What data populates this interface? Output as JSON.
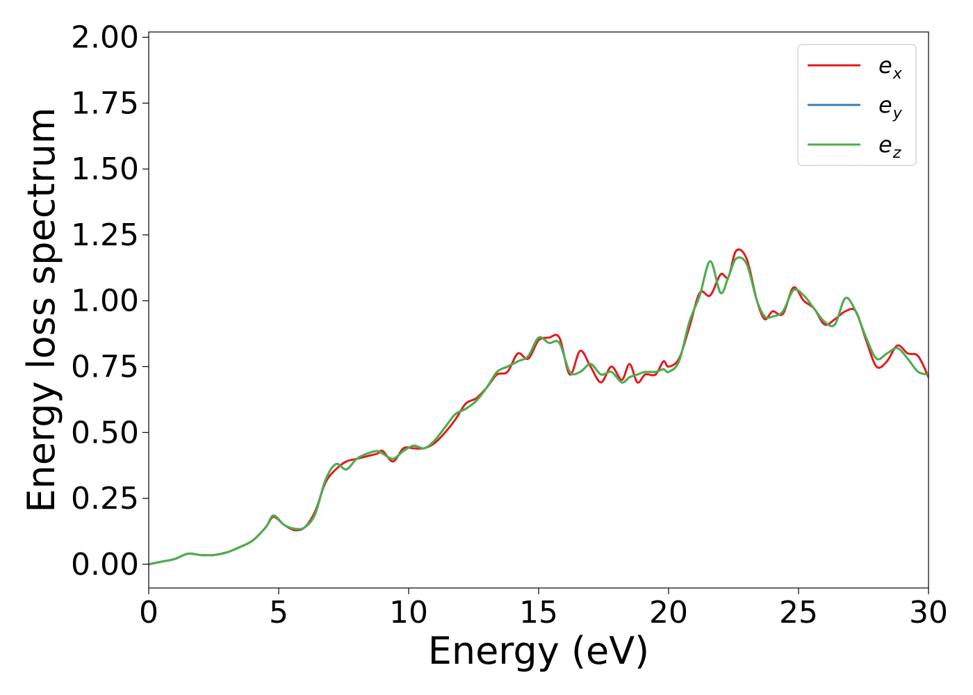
{
  "chart_data": {
    "type": "line",
    "title": "",
    "xlabel": "Energy (eV)",
    "ylabel": "Energy loss spectrum",
    "xlim": [
      0,
      30
    ],
    "ylim": [
      -0.09,
      2.02
    ],
    "xticks": [
      0,
      5,
      10,
      15,
      20,
      25,
      30
    ],
    "xtick_labels": [
      "0",
      "5",
      "10",
      "15",
      "20",
      "25",
      "30"
    ],
    "yticks": [
      0.0,
      0.25,
      0.5,
      0.75,
      1.0,
      1.25,
      1.5,
      1.75,
      2.0
    ],
    "ytick_labels": [
      "0.00",
      "0.25",
      "0.50",
      "0.75",
      "1.00",
      "1.25",
      "1.50",
      "1.75",
      "2.00"
    ],
    "grid": false,
    "legend": "top-right",
    "series": [
      {
        "name": "e",
        "subscript": "x",
        "color": "#e41a1c",
        "x": [
          0,
          0.5,
          1.0,
          1.5,
          2.0,
          2.5,
          3.0,
          3.5,
          4.0,
          4.5,
          4.8,
          5.2,
          5.6,
          6.0,
          6.4,
          6.8,
          7.2,
          7.6,
          8.0,
          8.4,
          8.8,
          9.0,
          9.4,
          9.8,
          10.2,
          10.6,
          11.0,
          11.4,
          11.8,
          12.2,
          12.6,
          13.0,
          13.4,
          13.8,
          14.2,
          14.6,
          15.0,
          15.4,
          15.8,
          16.2,
          16.6,
          17.0,
          17.4,
          17.8,
          18.2,
          18.5,
          18.8,
          19.1,
          19.5,
          19.8,
          20.0,
          20.4,
          20.8,
          21.2,
          21.6,
          22.0,
          22.3,
          22.6,
          23.0,
          23.4,
          23.7,
          24.0,
          24.4,
          24.8,
          25.2,
          25.6,
          26.0,
          26.4,
          26.8,
          27.2,
          27.6,
          28.0,
          28.4,
          28.8,
          29.2,
          29.6,
          30.0
        ],
        "values": [
          0.0,
          0.01,
          0.02,
          0.04,
          0.035,
          0.035,
          0.045,
          0.065,
          0.09,
          0.14,
          0.18,
          0.15,
          0.13,
          0.14,
          0.2,
          0.31,
          0.36,
          0.39,
          0.4,
          0.41,
          0.42,
          0.43,
          0.39,
          0.44,
          0.44,
          0.44,
          0.46,
          0.5,
          0.55,
          0.61,
          0.63,
          0.67,
          0.72,
          0.73,
          0.8,
          0.78,
          0.85,
          0.86,
          0.86,
          0.72,
          0.81,
          0.75,
          0.69,
          0.75,
          0.7,
          0.76,
          0.69,
          0.72,
          0.72,
          0.77,
          0.75,
          0.78,
          0.9,
          1.03,
          1.02,
          1.1,
          1.09,
          1.19,
          1.16,
          1.0,
          0.93,
          0.96,
          0.95,
          1.05,
          1.0,
          0.97,
          0.91,
          0.93,
          0.96,
          0.96,
          0.85,
          0.75,
          0.77,
          0.83,
          0.8,
          0.79,
          0.71
        ]
      },
      {
        "name": "e",
        "subscript": "y",
        "color": "#377eb8",
        "x": [
          0,
          0.5,
          1.0,
          1.5,
          2.0,
          2.5,
          3.0,
          3.5,
          4.0,
          4.5,
          4.8,
          5.2,
          5.6,
          6.0,
          6.4,
          6.8,
          7.2,
          7.6,
          8.0,
          8.4,
          8.8,
          9.0,
          9.4,
          9.8,
          10.2,
          10.6,
          11.0,
          11.4,
          11.8,
          12.2,
          12.6,
          13.0,
          13.4,
          13.8,
          14.2,
          14.6,
          15.0,
          15.4,
          15.8,
          16.2,
          16.6,
          17.0,
          17.4,
          17.8,
          18.2,
          18.5,
          18.8,
          19.1,
          19.5,
          19.8,
          20.0,
          20.4,
          20.8,
          21.2,
          21.6,
          22.0,
          22.3,
          22.6,
          23.0,
          23.4,
          23.7,
          24.0,
          24.4,
          24.8,
          25.2,
          25.6,
          26.0,
          26.4,
          26.8,
          27.2,
          27.6,
          28.0,
          28.4,
          28.8,
          29.2,
          29.6,
          30.0
        ],
        "values": [
          0.0,
          0.01,
          0.02,
          0.04,
          0.035,
          0.035,
          0.045,
          0.065,
          0.09,
          0.14,
          0.185,
          0.15,
          0.135,
          0.14,
          0.19,
          0.32,
          0.38,
          0.36,
          0.4,
          0.42,
          0.43,
          0.42,
          0.4,
          0.43,
          0.45,
          0.44,
          0.47,
          0.52,
          0.57,
          0.59,
          0.62,
          0.67,
          0.73,
          0.75,
          0.77,
          0.79,
          0.86,
          0.84,
          0.84,
          0.73,
          0.73,
          0.76,
          0.72,
          0.73,
          0.69,
          0.71,
          0.72,
          0.73,
          0.73,
          0.74,
          0.73,
          0.77,
          0.92,
          1.02,
          1.15,
          1.03,
          1.09,
          1.16,
          1.14,
          1.0,
          0.94,
          0.94,
          0.96,
          1.04,
          1.02,
          0.97,
          0.92,
          0.91,
          1.01,
          0.96,
          0.86,
          0.78,
          0.8,
          0.82,
          0.78,
          0.73,
          0.72
        ]
      },
      {
        "name": "e",
        "subscript": "z",
        "color": "#4daf4a",
        "x": [
          0,
          0.5,
          1.0,
          1.5,
          2.0,
          2.5,
          3.0,
          3.5,
          4.0,
          4.5,
          4.8,
          5.2,
          5.6,
          6.0,
          6.4,
          6.8,
          7.2,
          7.6,
          8.0,
          8.4,
          8.8,
          9.0,
          9.4,
          9.8,
          10.2,
          10.6,
          11.0,
          11.4,
          11.8,
          12.2,
          12.6,
          13.0,
          13.4,
          13.8,
          14.2,
          14.6,
          15.0,
          15.4,
          15.8,
          16.2,
          16.6,
          17.0,
          17.4,
          17.8,
          18.2,
          18.5,
          18.8,
          19.1,
          19.5,
          19.8,
          20.0,
          20.4,
          20.8,
          21.2,
          21.6,
          22.0,
          22.3,
          22.6,
          23.0,
          23.4,
          23.7,
          24.0,
          24.4,
          24.8,
          25.2,
          25.6,
          26.0,
          26.4,
          26.8,
          27.2,
          27.6,
          28.0,
          28.4,
          28.8,
          29.2,
          29.6,
          30.0
        ],
        "values": [
          0.0,
          0.01,
          0.02,
          0.04,
          0.035,
          0.035,
          0.045,
          0.065,
          0.09,
          0.14,
          0.185,
          0.15,
          0.135,
          0.14,
          0.19,
          0.32,
          0.38,
          0.36,
          0.4,
          0.42,
          0.43,
          0.42,
          0.4,
          0.43,
          0.45,
          0.44,
          0.47,
          0.52,
          0.57,
          0.59,
          0.62,
          0.67,
          0.73,
          0.75,
          0.77,
          0.79,
          0.86,
          0.84,
          0.84,
          0.73,
          0.73,
          0.76,
          0.72,
          0.73,
          0.69,
          0.71,
          0.72,
          0.73,
          0.73,
          0.74,
          0.73,
          0.77,
          0.92,
          1.02,
          1.15,
          1.03,
          1.09,
          1.16,
          1.14,
          1.0,
          0.94,
          0.94,
          0.96,
          1.04,
          1.02,
          0.97,
          0.92,
          0.91,
          1.01,
          0.96,
          0.86,
          0.78,
          0.8,
          0.82,
          0.78,
          0.73,
          0.72
        ]
      }
    ]
  }
}
